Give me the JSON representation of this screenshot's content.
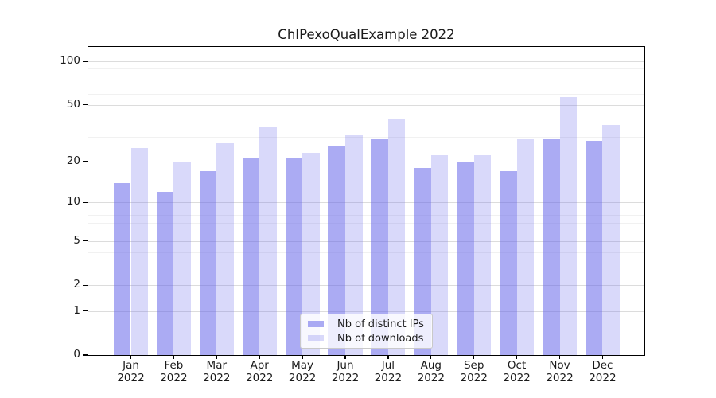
{
  "figure": {
    "background": "#ffffff"
  },
  "chart_data": {
    "type": "bar",
    "title": "ChIPexoQualExample 2022",
    "categories": [
      "Jan",
      "Feb",
      "Mar",
      "Apr",
      "May",
      "Jun",
      "Jul",
      "Aug",
      "Sep",
      "Oct",
      "Nov",
      "Dec"
    ],
    "year_label": "2022",
    "series": [
      {
        "name": "Nb of distinct IPs",
        "color": "rgba(102,102,234,0.55)",
        "values": [
          14,
          12,
          17,
          21,
          21,
          26,
          29,
          18,
          20,
          17,
          29,
          28
        ]
      },
      {
        "name": "Nb of downloads",
        "color": "rgba(102,102,234,0.25)",
        "values": [
          25,
          20,
          27,
          35,
          23,
          31,
          40,
          22,
          22,
          29,
          57,
          36
        ]
      }
    ],
    "xlabel": "",
    "ylabel": "",
    "y_axis": {
      "scale": "log1p",
      "max": 125,
      "tick_values": [
        100,
        50,
        20,
        10,
        5,
        2,
        1,
        0
      ],
      "tick_labels": [
        "100",
        "50",
        "20",
        "10",
        "5",
        "2",
        "1",
        "0"
      ],
      "minor_tick_values": [
        3,
        4,
        6,
        7,
        8,
        9,
        30,
        40,
        60,
        70,
        80,
        90
      ]
    },
    "grid": true,
    "legend": {
      "position": "lower center",
      "entries": [
        "Nb of distinct IPs",
        "Nb of downloads"
      ]
    }
  },
  "colors": {
    "bar_distinct_ips": "rgba(102,102,234,0.55)",
    "bar_downloads": "rgba(102,102,234,0.25)",
    "grid_major": "#dcdcdc",
    "grid_minor": "#f1f1f1",
    "spine": "#000000",
    "text": "#1a1a1a"
  }
}
